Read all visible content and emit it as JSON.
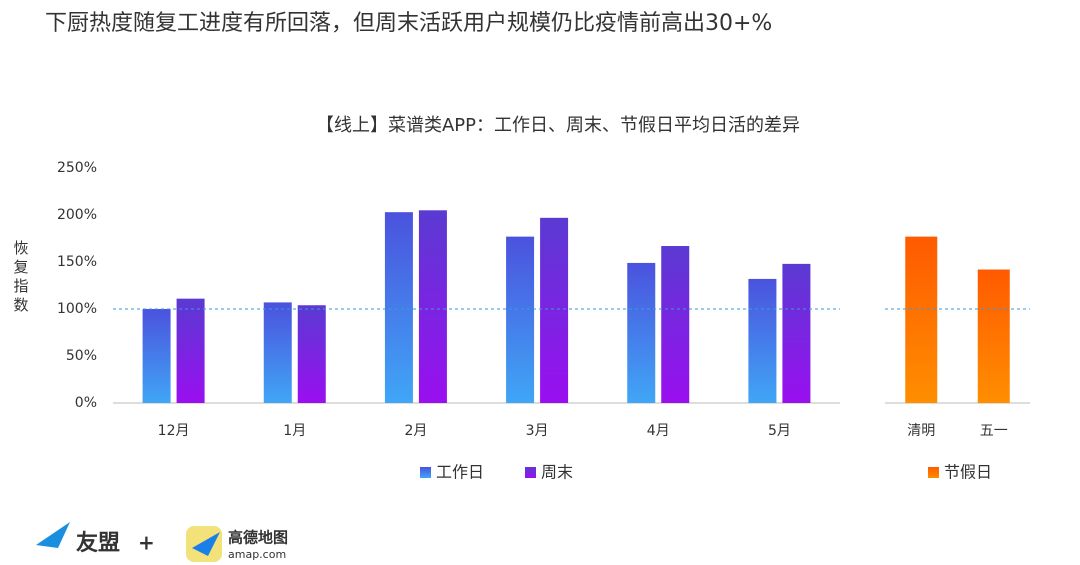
{
  "header": {
    "title": "下厨热度随复工进度有所回落，但周末活跃用户规模仍比疫情前高出30+%"
  },
  "chart_data": [
    {
      "type": "bar",
      "title": "【线上】菜谱类APP：工作日、周末、节假日平均日活的差异",
      "y_label": "恢复指数",
      "categories": [
        "12月",
        "1月",
        "2月",
        "3月",
        "4月",
        "5月"
      ],
      "series": [
        {
          "name": "工作日",
          "colors": [
            "#4b52de",
            "#40a6f6"
          ],
          "values": [
            100,
            107,
            203,
            177,
            149,
            132
          ]
        },
        {
          "name": "周末",
          "colors": [
            "#5a3ad2",
            "#9a0ff0"
          ],
          "values": [
            111,
            104,
            205,
            197,
            167,
            148
          ]
        }
      ],
      "ylim": [
        0,
        250
      ],
      "yticks": [
        {
          "value": 0,
          "label": "0%"
        },
        {
          "value": 50,
          "label": "50%"
        },
        {
          "value": 100,
          "label": "100%"
        },
        {
          "value": 150,
          "label": "150%"
        },
        {
          "value": 200,
          "label": "200%"
        },
        {
          "value": 250,
          "label": "250%"
        }
      ],
      "reference_line": 100
    },
    {
      "type": "bar",
      "categories": [
        "清明",
        "五一"
      ],
      "series": [
        {
          "name": "节假日",
          "colors": [
            "#ff5a00",
            "#ff8e00"
          ],
          "values": [
            177,
            142
          ]
        }
      ],
      "ylim": [
        0,
        250
      ],
      "reference_line": 100
    }
  ],
  "footer": {
    "logos": [
      "友盟",
      "+",
      "高德地图",
      "amap.com"
    ]
  }
}
